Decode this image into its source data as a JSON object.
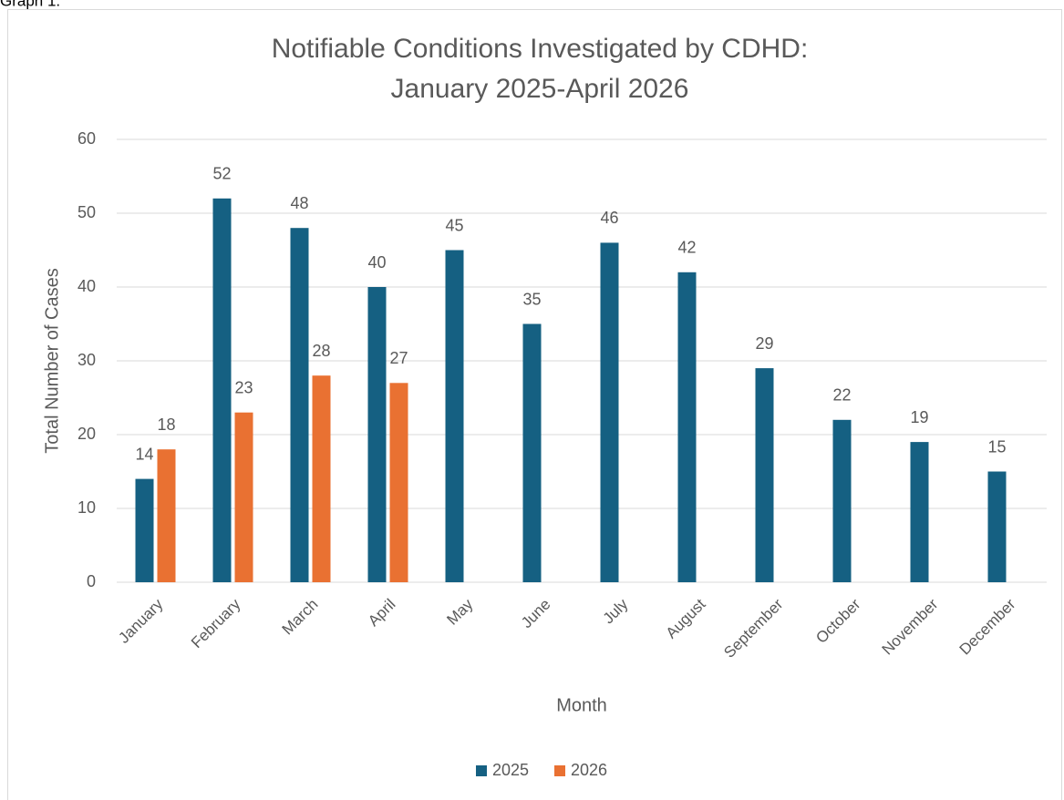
{
  "caption": "Graph 1.",
  "chart_data": {
    "type": "bar",
    "title": [
      "Notifiable Conditions Investigated by CDHD:",
      "January 2025-April 2026"
    ],
    "x_label": "Month",
    "y_label": "Total Number of Cases",
    "categories": [
      "January",
      "February",
      "March",
      "April",
      "May",
      "June",
      "July",
      "August",
      "September",
      "October",
      "November",
      "December"
    ],
    "series": [
      {
        "name": "2025",
        "color": "#156082",
        "values": [
          14,
          52,
          48,
          40,
          45,
          35,
          46,
          42,
          29,
          22,
          19,
          15
        ]
      },
      {
        "name": "2026",
        "color": "#e97132",
        "values": [
          18,
          23,
          28,
          27,
          null,
          null,
          null,
          null,
          null,
          null,
          null,
          null
        ]
      }
    ],
    "ylim": [
      0,
      60
    ],
    "yticks": [
      0,
      10,
      20,
      30,
      40,
      50,
      60
    ],
    "grid": true,
    "legend": "bottom",
    "data_labels": true
  }
}
